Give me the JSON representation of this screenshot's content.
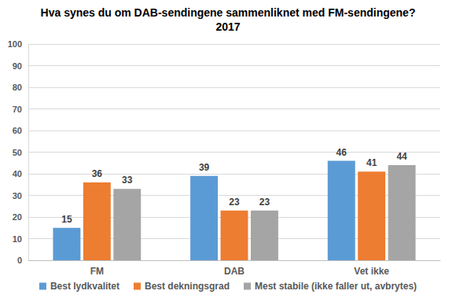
{
  "chart_data": {
    "type": "bar",
    "title": "Hva synes du om DAB-sendingene sammenliknet med FM-sendingene?",
    "subtitle": "2017",
    "categories": [
      "FM",
      "DAB",
      "Vet ikke"
    ],
    "series": [
      {
        "name": "Best lydkvalitet",
        "color": "#5B9BD5",
        "values": [
          15,
          39,
          46
        ]
      },
      {
        "name": "Best dekningsgrad",
        "color": "#ED7D31",
        "values": [
          36,
          23,
          41
        ]
      },
      {
        "name": "Mest stabile (ikke faller ut, avbrytes)",
        "color": "#A5A5A5",
        "values": [
          33,
          23,
          44
        ]
      }
    ],
    "ylim": [
      0,
      100
    ],
    "yticks": [
      0,
      10,
      20,
      30,
      40,
      50,
      60,
      70,
      80,
      90,
      100
    ],
    "grid": true,
    "legend": "bottom",
    "data_labels": true
  }
}
